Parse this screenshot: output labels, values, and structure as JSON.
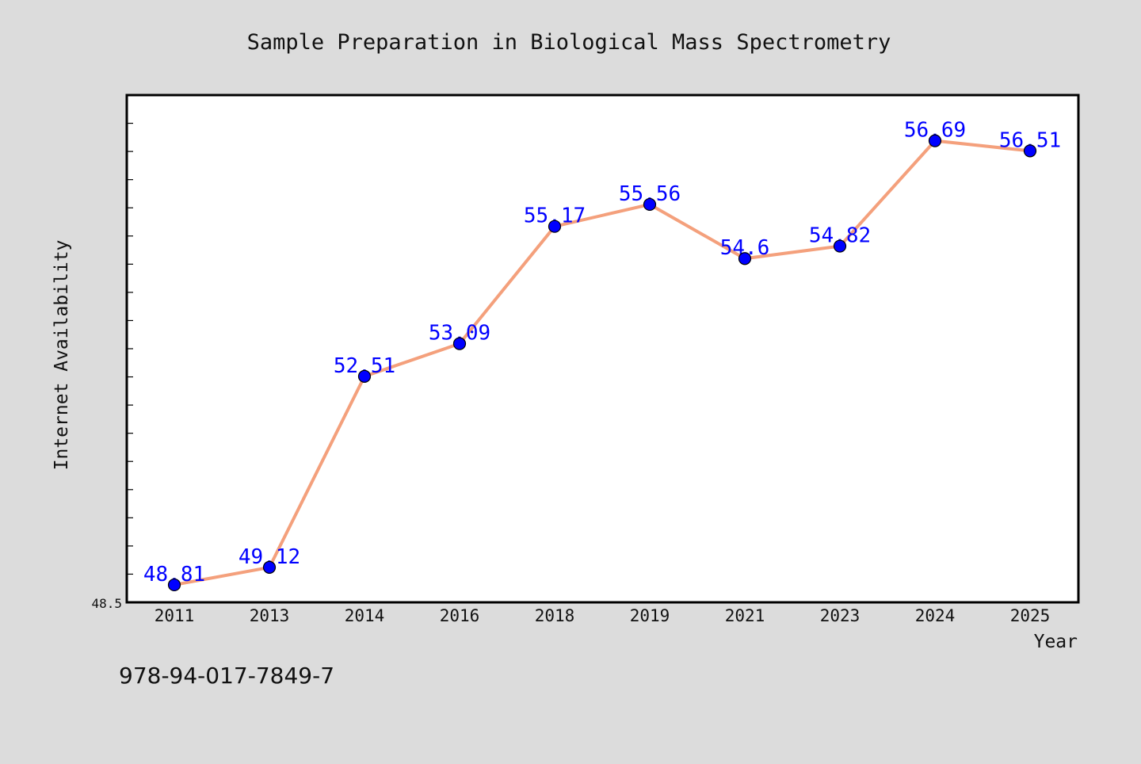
{
  "chart_data": {
    "type": "line",
    "title": "Sample Preparation in Biological Mass Spectrometry",
    "xlabel": "Year",
    "ylabel": "Internet Availability",
    "categories": [
      "2011",
      "2013",
      "2014",
      "2016",
      "2018",
      "2019",
      "2021",
      "2023",
      "2024",
      "2025"
    ],
    "series": [
      {
        "values": [
          48.81,
          49.12,
          52.51,
          53.09,
          55.17,
          55.56,
          54.6,
          54.82,
          56.69,
          56.51
        ],
        "data_labels": [
          "48.81",
          "49.12",
          "52.51",
          "53.09",
          "55.17",
          "55.56",
          "54.6",
          "54.82",
          "56.69",
          "56.51"
        ]
      }
    ],
    "ylim": [
      48.5,
      57.5
    ],
    "y_tick_labels": [
      "48.5"
    ],
    "grid": false,
    "colors": {
      "line": "#f4a07c",
      "marker": "#0000ff",
      "label": "#0000ff",
      "frame": "#000000"
    }
  },
  "footer": {
    "isbn": "978-94-017-7849-7"
  }
}
